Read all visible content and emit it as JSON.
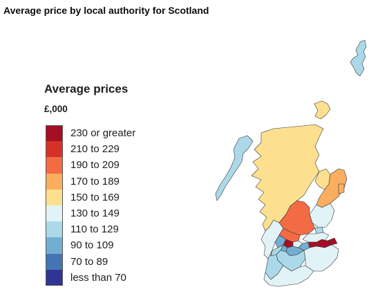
{
  "title": "Average price by local authority for Scotland",
  "legend": {
    "title": "Average prices",
    "unit": "£,000",
    "items": [
      {
        "label": "230 or greater",
        "color": "#a50f26"
      },
      {
        "label": "210 to 229",
        "color": "#d63127"
      },
      {
        "label": "190 to 209",
        "color": "#f36b43"
      },
      {
        "label": "170 to 189",
        "color": "#fbae60"
      },
      {
        "label": "150 to 169",
        "color": "#fde08f"
      },
      {
        "label": "130 to 149",
        "color": "#e2f3f8"
      },
      {
        "label": "110 to 129",
        "color": "#abd9e9"
      },
      {
        "label": "90 to 109",
        "color": "#74add2"
      },
      {
        "label": "70 to 89",
        "color": "#4574b4"
      },
      {
        "label": "less than 70",
        "color": "#303594"
      }
    ]
  }
}
